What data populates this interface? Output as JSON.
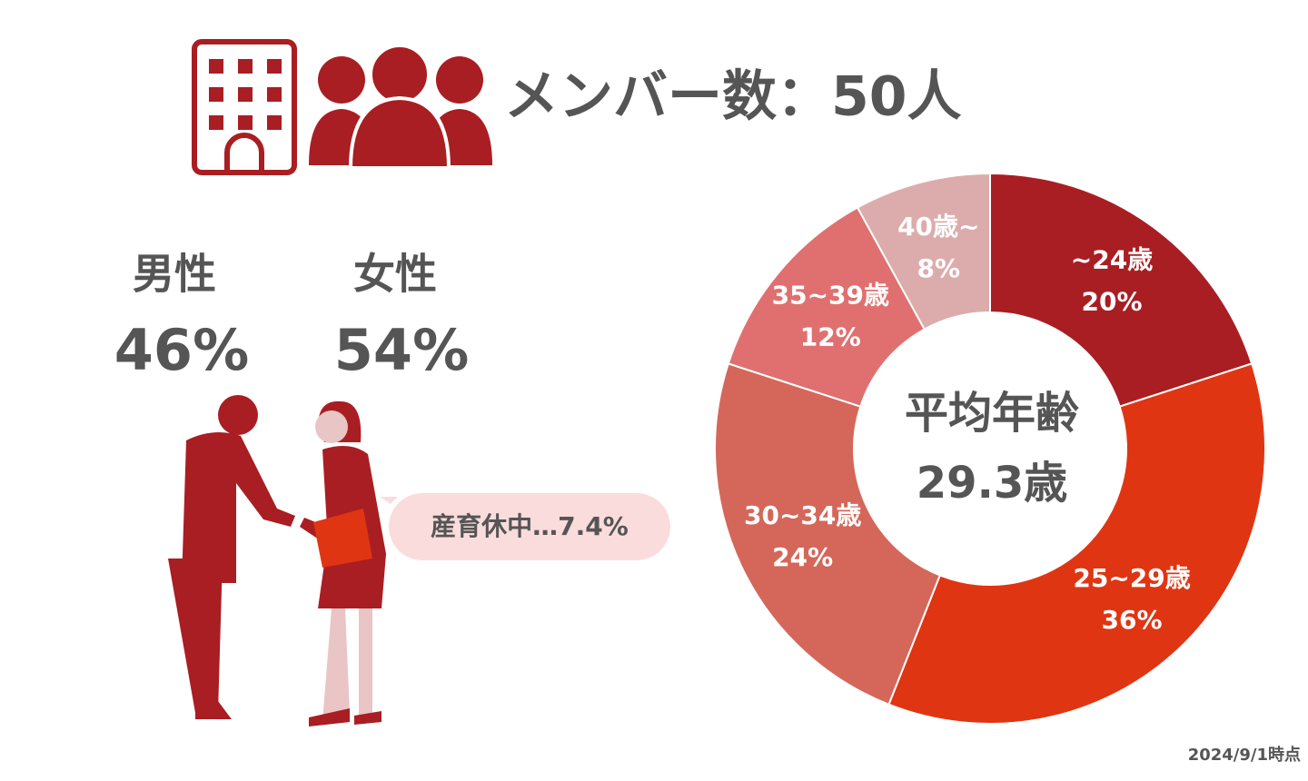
{
  "header": {
    "title": "メンバー数：50人"
  },
  "gender": {
    "male_label": "男性",
    "male_share": "46%",
    "female_label": "女性",
    "female_share": "54%",
    "leave_note": "産育休中…7.4%"
  },
  "footnote": "2024/9/1時点",
  "chart_data": {
    "type": "donut",
    "center_title": "平均年齢",
    "center_value": "29.3歳",
    "categories": [
      "~24歳",
      "25~29歳",
      "30~34歳",
      "35~39歳",
      "40歳~"
    ],
    "values": [
      20,
      36,
      24,
      12,
      8
    ],
    "value_labels": [
      "20%",
      "36%",
      "24%",
      "12%",
      "8%"
    ],
    "colors": [
      "#a91e23",
      "#e03512",
      "#d4675a",
      "#e07070",
      "#dcacac"
    ]
  }
}
